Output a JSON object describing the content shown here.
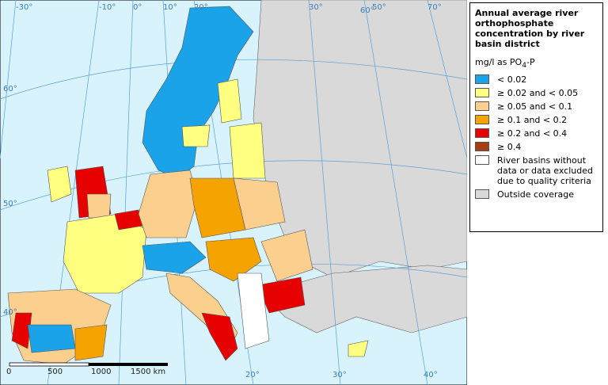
{
  "map": {
    "graticule_labels": {
      "top": [
        "-30°",
        "-10°",
        "0°",
        "10°",
        "20°",
        "30°",
        "50°",
        "60°",
        "70°"
      ],
      "left": [
        "60°",
        "50°",
        "40°"
      ],
      "bottom": [
        "20°",
        "30°",
        "40°"
      ]
    },
    "scale_bar": {
      "labels": [
        "0",
        "500",
        "1000",
        "1500 km"
      ]
    }
  },
  "legend": {
    "title": "Annual average river orthophosphate concentration by river basin district",
    "unit": {
      "text": "mg/l as PO",
      "subscript": "4",
      "suffix": "-P"
    },
    "items": [
      {
        "label": "< 0.02",
        "color": "#1aa3e8"
      },
      {
        "label": "≥ 0.02 and < 0.05",
        "color": "#ffff80"
      },
      {
        "label": "≥ 0.05 and < 0.1",
        "color": "#fbd08f"
      },
      {
        "label": "≥ 0.1 and < 0.2",
        "color": "#f5a300"
      },
      {
        "label": "≥ 0.2 and < 0.4",
        "color": "#e60000"
      },
      {
        "label": "≥ 0.4",
        "color": "#a83c14"
      },
      {
        "label": "River basins without data or data excluded due to quality criteria",
        "color": "#ffffff"
      },
      {
        "label": "Outside coverage",
        "color": "#d9d9d9"
      }
    ]
  }
}
